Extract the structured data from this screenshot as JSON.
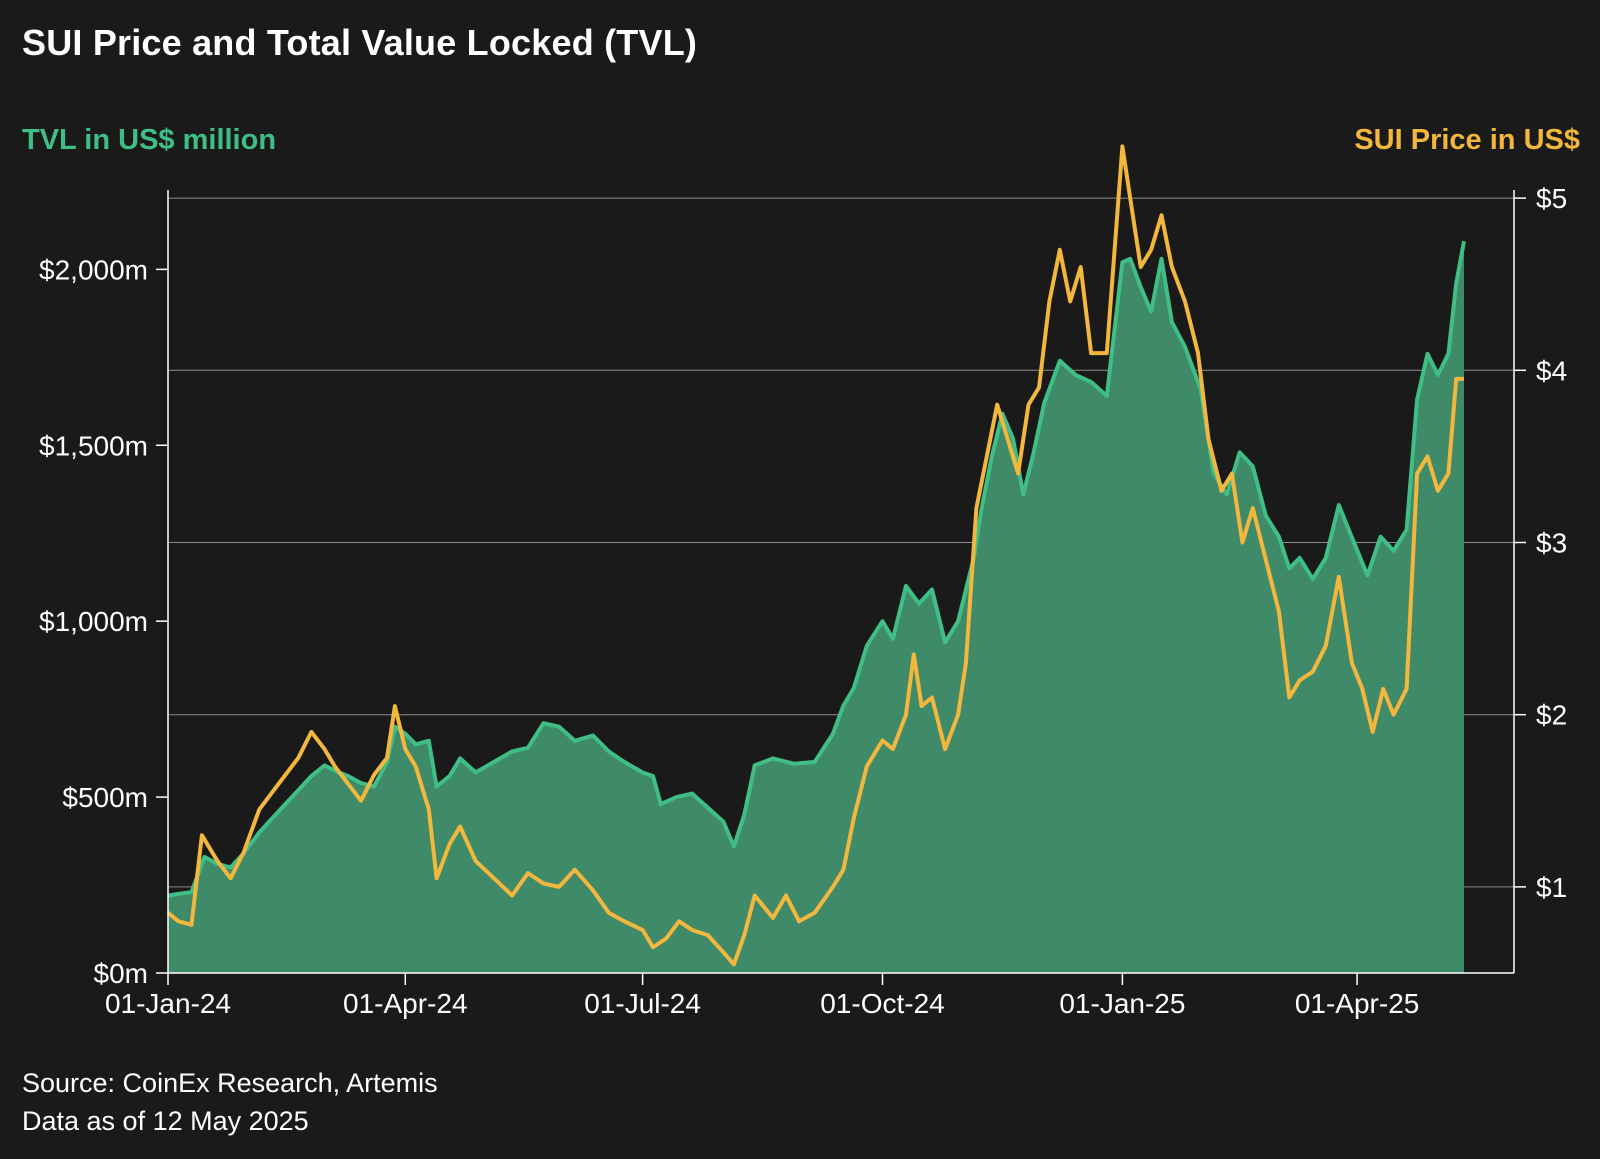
{
  "title": "SUI Price and Total Value Locked (TVL)",
  "footer": {
    "source": "Source: CoinEx Research, Artemis",
    "as_of": "Data as of 12 May 2025"
  },
  "colors": {
    "background": "#1a1a1a",
    "tvl_line": "#3fbf86",
    "tvl_fill": "#3f8a69",
    "price_line": "#f2b73c",
    "grid": "#8a8a8a",
    "text": "#ffffff"
  },
  "chart_data": {
    "type": "area",
    "title": "SUI Price and Total Value Locked (TVL)",
    "ylabel": "TVL in US$ million",
    "y2label": "SUI Price in US$",
    "xlim": [
      "2024-01-01",
      "2025-05-12"
    ],
    "ylim": [
      0,
      2200
    ],
    "y2lim": [
      0.5,
      5.5
    ],
    "x_ticks": [
      {
        "date": "2024-01-01",
        "label": "01-Jan-24"
      },
      {
        "date": "2024-04-01",
        "label": "01-Apr-24"
      },
      {
        "date": "2024-07-01",
        "label": "01-Jul-24"
      },
      {
        "date": "2024-10-01",
        "label": "01-Oct-24"
      },
      {
        "date": "2025-01-01",
        "label": "01-Jan-25"
      },
      {
        "date": "2025-04-01",
        "label": "01-Apr-25"
      }
    ],
    "y_ticks": [
      {
        "value": 0,
        "label": "$0m"
      },
      {
        "value": 500,
        "label": "$500m"
      },
      {
        "value": 1000,
        "label": "$1,000m"
      },
      {
        "value": 1500,
        "label": "$1,500m"
      },
      {
        "value": 2000,
        "label": "$2,000m"
      }
    ],
    "y2_ticks": [
      {
        "value": 1,
        "label": "$1"
      },
      {
        "value": 2,
        "label": "$2"
      },
      {
        "value": 3,
        "label": "$3"
      },
      {
        "value": 4,
        "label": "$4"
      },
      {
        "value": 5,
        "label": "$5"
      }
    ],
    "grid": "horizontal",
    "series": [
      {
        "name": "TVL in US$ million",
        "axis": "left",
        "style": "area",
        "points": [
          [
            "2024-01-01",
            220
          ],
          [
            "2024-01-05",
            225
          ],
          [
            "2024-01-10",
            230
          ],
          [
            "2024-01-15",
            330
          ],
          [
            "2024-01-20",
            310
          ],
          [
            "2024-01-25",
            300
          ],
          [
            "2024-01-30",
            340
          ],
          [
            "2024-02-05",
            400
          ],
          [
            "2024-02-10",
            440
          ],
          [
            "2024-02-15",
            480
          ],
          [
            "2024-02-20",
            520
          ],
          [
            "2024-02-25",
            560
          ],
          [
            "2024-03-01",
            590
          ],
          [
            "2024-03-05",
            575
          ],
          [
            "2024-03-10",
            560
          ],
          [
            "2024-03-15",
            540
          ],
          [
            "2024-03-20",
            530
          ],
          [
            "2024-03-25",
            600
          ],
          [
            "2024-03-28",
            700
          ],
          [
            "2024-04-01",
            680
          ],
          [
            "2024-04-05",
            650
          ],
          [
            "2024-04-10",
            660
          ],
          [
            "2024-04-13",
            530
          ],
          [
            "2024-04-18",
            560
          ],
          [
            "2024-04-22",
            610
          ],
          [
            "2024-04-28",
            570
          ],
          [
            "2024-05-05",
            600
          ],
          [
            "2024-05-12",
            630
          ],
          [
            "2024-05-18",
            640
          ],
          [
            "2024-05-24",
            710
          ],
          [
            "2024-05-30",
            700
          ],
          [
            "2024-06-05",
            660
          ],
          [
            "2024-06-12",
            675
          ],
          [
            "2024-06-18",
            630
          ],
          [
            "2024-06-24",
            600
          ],
          [
            "2024-07-01",
            570
          ],
          [
            "2024-07-05",
            560
          ],
          [
            "2024-07-08",
            480
          ],
          [
            "2024-07-14",
            500
          ],
          [
            "2024-07-20",
            510
          ],
          [
            "2024-07-26",
            470
          ],
          [
            "2024-08-01",
            430
          ],
          [
            "2024-08-05",
            360
          ],
          [
            "2024-08-09",
            450
          ],
          [
            "2024-08-13",
            590
          ],
          [
            "2024-08-20",
            610
          ],
          [
            "2024-08-28",
            595
          ],
          [
            "2024-09-05",
            600
          ],
          [
            "2024-09-12",
            680
          ],
          [
            "2024-09-16",
            760
          ],
          [
            "2024-09-20",
            810
          ],
          [
            "2024-09-25",
            930
          ],
          [
            "2024-10-01",
            1000
          ],
          [
            "2024-10-05",
            950
          ],
          [
            "2024-10-10",
            1100
          ],
          [
            "2024-10-15",
            1050
          ],
          [
            "2024-10-20",
            1090
          ],
          [
            "2024-10-25",
            940
          ],
          [
            "2024-10-30",
            1000
          ],
          [
            "2024-11-05",
            1180
          ],
          [
            "2024-11-08",
            1320
          ],
          [
            "2024-11-12",
            1470
          ],
          [
            "2024-11-16",
            1590
          ],
          [
            "2024-11-20",
            1520
          ],
          [
            "2024-11-24",
            1360
          ],
          [
            "2024-11-28",
            1480
          ],
          [
            "2024-12-02",
            1620
          ],
          [
            "2024-12-08",
            1740
          ],
          [
            "2024-12-14",
            1700
          ],
          [
            "2024-12-20",
            1680
          ],
          [
            "2024-12-26",
            1640
          ],
          [
            "2025-01-01",
            2020
          ],
          [
            "2025-01-04",
            2030
          ],
          [
            "2025-01-08",
            1950
          ],
          [
            "2025-01-12",
            1880
          ],
          [
            "2025-01-16",
            2030
          ],
          [
            "2025-01-20",
            1850
          ],
          [
            "2025-01-25",
            1780
          ],
          [
            "2025-01-31",
            1660
          ],
          [
            "2025-02-05",
            1420
          ],
          [
            "2025-02-10",
            1360
          ],
          [
            "2025-02-15",
            1480
          ],
          [
            "2025-02-20",
            1440
          ],
          [
            "2025-02-25",
            1300
          ],
          [
            "2025-03-02",
            1240
          ],
          [
            "2025-03-06",
            1150
          ],
          [
            "2025-03-10",
            1180
          ],
          [
            "2025-03-15",
            1120
          ],
          [
            "2025-03-20",
            1180
          ],
          [
            "2025-03-25",
            1330
          ],
          [
            "2025-03-31",
            1220
          ],
          [
            "2025-04-05",
            1130
          ],
          [
            "2025-04-10",
            1240
          ],
          [
            "2025-04-15",
            1200
          ],
          [
            "2025-04-20",
            1260
          ],
          [
            "2025-04-24",
            1630
          ],
          [
            "2025-04-28",
            1760
          ],
          [
            "2025-05-02",
            1700
          ],
          [
            "2025-05-06",
            1760
          ],
          [
            "2025-05-09",
            1960
          ],
          [
            "2025-05-12",
            2080
          ]
        ]
      },
      {
        "name": "SUI Price in US$",
        "axis": "right",
        "style": "line",
        "points": [
          [
            "2024-01-01",
            0.85
          ],
          [
            "2024-01-05",
            0.8
          ],
          [
            "2024-01-10",
            0.78
          ],
          [
            "2024-01-14",
            1.3
          ],
          [
            "2024-01-20",
            1.15
          ],
          [
            "2024-01-25",
            1.05
          ],
          [
            "2024-01-30",
            1.2
          ],
          [
            "2024-02-05",
            1.45
          ],
          [
            "2024-02-10",
            1.55
          ],
          [
            "2024-02-15",
            1.65
          ],
          [
            "2024-02-20",
            1.75
          ],
          [
            "2024-02-25",
            1.9
          ],
          [
            "2024-03-01",
            1.8
          ],
          [
            "2024-03-05",
            1.7
          ],
          [
            "2024-03-10",
            1.6
          ],
          [
            "2024-03-15",
            1.5
          ],
          [
            "2024-03-20",
            1.65
          ],
          [
            "2024-03-25",
            1.75
          ],
          [
            "2024-03-28",
            2.05
          ],
          [
            "2024-04-01",
            1.8
          ],
          [
            "2024-04-05",
            1.7
          ],
          [
            "2024-04-10",
            1.45
          ],
          [
            "2024-04-13",
            1.05
          ],
          [
            "2024-04-18",
            1.25
          ],
          [
            "2024-04-22",
            1.35
          ],
          [
            "2024-04-28",
            1.15
          ],
          [
            "2024-05-05",
            1.05
          ],
          [
            "2024-05-12",
            0.95
          ],
          [
            "2024-05-18",
            1.08
          ],
          [
            "2024-05-24",
            1.02
          ],
          [
            "2024-05-30",
            1.0
          ],
          [
            "2024-06-05",
            1.1
          ],
          [
            "2024-06-12",
            0.98
          ],
          [
            "2024-06-18",
            0.85
          ],
          [
            "2024-06-24",
            0.8
          ],
          [
            "2024-07-01",
            0.75
          ],
          [
            "2024-07-05",
            0.65
          ],
          [
            "2024-07-10",
            0.7
          ],
          [
            "2024-07-15",
            0.8
          ],
          [
            "2024-07-20",
            0.75
          ],
          [
            "2024-07-26",
            0.72
          ],
          [
            "2024-08-01",
            0.62
          ],
          [
            "2024-08-05",
            0.55
          ],
          [
            "2024-08-09",
            0.72
          ],
          [
            "2024-08-13",
            0.95
          ],
          [
            "2024-08-20",
            0.82
          ],
          [
            "2024-08-25",
            0.95
          ],
          [
            "2024-08-30",
            0.8
          ],
          [
            "2024-09-05",
            0.85
          ],
          [
            "2024-09-12",
            1.0
          ],
          [
            "2024-09-16",
            1.1
          ],
          [
            "2024-09-20",
            1.4
          ],
          [
            "2024-09-25",
            1.7
          ],
          [
            "2024-10-01",
            1.85
          ],
          [
            "2024-10-05",
            1.8
          ],
          [
            "2024-10-10",
            2.0
          ],
          [
            "2024-10-13",
            2.35
          ],
          [
            "2024-10-16",
            2.05
          ],
          [
            "2024-10-20",
            2.1
          ],
          [
            "2024-10-25",
            1.8
          ],
          [
            "2024-10-30",
            2.0
          ],
          [
            "2024-11-02",
            2.3
          ],
          [
            "2024-11-06",
            3.2
          ],
          [
            "2024-11-10",
            3.5
          ],
          [
            "2024-11-14",
            3.8
          ],
          [
            "2024-11-18",
            3.6
          ],
          [
            "2024-11-22",
            3.4
          ],
          [
            "2024-11-26",
            3.8
          ],
          [
            "2024-11-30",
            3.9
          ],
          [
            "2024-12-04",
            4.4
          ],
          [
            "2024-12-08",
            4.7
          ],
          [
            "2024-12-12",
            4.4
          ],
          [
            "2024-12-16",
            4.6
          ],
          [
            "2024-12-20",
            4.1
          ],
          [
            "2024-12-26",
            4.1
          ],
          [
            "2025-01-01",
            5.3
          ],
          [
            "2025-01-04",
            5.0
          ],
          [
            "2025-01-08",
            4.6
          ],
          [
            "2025-01-12",
            4.7
          ],
          [
            "2025-01-16",
            4.9
          ],
          [
            "2025-01-20",
            4.6
          ],
          [
            "2025-01-25",
            4.4
          ],
          [
            "2025-01-30",
            4.1
          ],
          [
            "2025-02-03",
            3.6
          ],
          [
            "2025-02-08",
            3.3
          ],
          [
            "2025-02-12",
            3.4
          ],
          [
            "2025-02-16",
            3.0
          ],
          [
            "2025-02-20",
            3.2
          ],
          [
            "2025-02-25",
            2.9
          ],
          [
            "2025-03-02",
            2.6
          ],
          [
            "2025-03-06",
            2.1
          ],
          [
            "2025-03-10",
            2.2
          ],
          [
            "2025-03-15",
            2.25
          ],
          [
            "2025-03-20",
            2.4
          ],
          [
            "2025-03-25",
            2.8
          ],
          [
            "2025-03-30",
            2.3
          ],
          [
            "2025-04-03",
            2.15
          ],
          [
            "2025-04-07",
            1.9
          ],
          [
            "2025-04-11",
            2.15
          ],
          [
            "2025-04-15",
            2.0
          ],
          [
            "2025-04-20",
            2.15
          ],
          [
            "2025-04-24",
            3.4
          ],
          [
            "2025-04-28",
            3.5
          ],
          [
            "2025-05-02",
            3.3
          ],
          [
            "2025-05-06",
            3.4
          ],
          [
            "2025-05-09",
            3.95
          ],
          [
            "2025-05-12",
            3.95
          ]
        ]
      }
    ]
  }
}
